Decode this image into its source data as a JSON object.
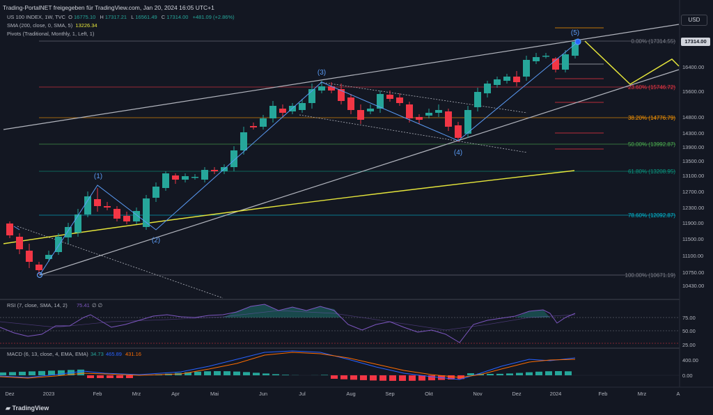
{
  "watermark": "Trading-PortalNET freigegeben für TradingView.com, Jan 20, 2024 16:05 UTC+1",
  "legend": {
    "symbol": "US 100 INDEX, 1W, TVC",
    "ohlc": [
      {
        "k": "O",
        "v": "16775.10"
      },
      {
        "k": "H",
        "v": "17317.21"
      },
      {
        "k": "L",
        "v": "16561.49"
      },
      {
        "k": "C",
        "v": "17314.00"
      }
    ],
    "change": "+481.09 (+2.86%)",
    "sma_label": "SMA (200, close, 0, SMA, 5)",
    "sma_value": "13226.34",
    "pivots_label": "Pivots (Traditional, Monthly, 1, Left, 1)"
  },
  "currency_button": "USD",
  "last_price": "17314.00",
  "price_axis": [
    "16400.00",
    "15600.00",
    "14800.00",
    "14300.00",
    "13900.00",
    "13500.00",
    "13100.00",
    "12700.00",
    "12300.00",
    "11900.00",
    "11500.00",
    "11100.00",
    "10750.00",
    "10430.00"
  ],
  "fib_levels": [
    {
      "label": "0.00% (17314.55)"
    },
    {
      "label": "23.60% (15746.72)"
    },
    {
      "label": "38.20% (14776.79)"
    },
    {
      "label": "50.00% (13992.87)"
    },
    {
      "label": "61.80% (13208.95)"
    },
    {
      "label": "78.60% (12092.87)"
    },
    {
      "label": "100.00% (10671.19)"
    }
  ],
  "waves": [
    "(1)",
    "(2)",
    "(3)",
    "(4)",
    "(5)"
  ],
  "rsi": {
    "label": "RSI (7, close, SMA, 14, 2)",
    "value": "75.41",
    "extra": "∅ ∅",
    "axis": [
      "75.00",
      "50.00",
      "25.00"
    ]
  },
  "macd": {
    "label": "MACD (6, 13, close, 4, EMA, EMA)",
    "v1": "34.73",
    "v2": "465.89",
    "v3": "431.16",
    "axis": [
      "400.00",
      "0.00"
    ]
  },
  "time_axis": [
    "Dez",
    "2023",
    "Feb",
    "Mrz",
    "Apr",
    "Mai",
    "Jun",
    "Jul",
    "Aug",
    "Sep",
    "Okt",
    "Nov",
    "Dez",
    "2024",
    "Feb",
    "Mrz",
    "A"
  ],
  "brand": "TradingView",
  "colors": {
    "up": "#26a69a",
    "down": "#f23645",
    "sma": "#e5e53b",
    "wave": "#2962ff",
    "background": "#131722",
    "text": "#b2b5be"
  }
}
